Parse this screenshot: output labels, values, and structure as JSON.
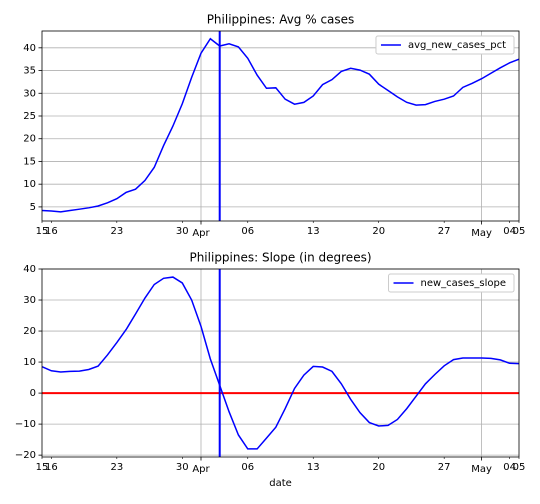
{
  "chart_data": [
    {
      "type": "line",
      "title": "Philippines: Avg % cases",
      "x": [
        0,
        1,
        2,
        3,
        4,
        5,
        6,
        7,
        8,
        9,
        10,
        11,
        12,
        13,
        14,
        15,
        16,
        17,
        18,
        19,
        20,
        21,
        22,
        23,
        24,
        25,
        26,
        27,
        28,
        29,
        30,
        31,
        32,
        33,
        34,
        35,
        36,
        37,
        38,
        39,
        40,
        41,
        42,
        43,
        44,
        45,
        46,
        47,
        48,
        49,
        50,
        51
      ],
      "series": [
        {
          "name": "avg_new_cases_pct",
          "color": "#0000ff",
          "values": [
            4.2,
            4.1,
            3.9,
            4.2,
            4.5,
            4.8,
            5.2,
            5.9,
            6.8,
            8.2,
            8.9,
            10.8,
            13.7,
            18.5,
            22.8,
            27.7,
            33.5,
            38.8,
            42.0,
            40.4,
            40.9,
            40.2,
            37.7,
            34.0,
            31.1,
            31.2,
            28.7,
            27.6,
            28.0,
            29.4,
            31.9,
            33.0,
            34.8,
            35.5,
            35.1,
            34.2,
            32.0,
            30.6,
            29.2,
            28.0,
            27.4,
            27.5,
            28.2,
            28.7,
            29.4,
            31.3,
            32.2,
            33.2,
            34.4,
            35.6,
            36.7,
            37.5
          ]
        }
      ],
      "xlim": [
        0,
        51
      ],
      "xticks": [
        {
          "value": 0,
          "label": "15"
        },
        {
          "value": 1,
          "label": "16"
        },
        {
          "value": 8,
          "label": "23"
        },
        {
          "value": 15,
          "label": "30"
        },
        {
          "value": 22,
          "label": "06"
        },
        {
          "value": 29,
          "label": "13"
        },
        {
          "value": 36,
          "label": "20"
        },
        {
          "value": 43,
          "label": "27"
        },
        {
          "value": 50,
          "label": "04"
        },
        {
          "value": 51,
          "label": "05"
        }
      ],
      "xmajorticks": [
        {
          "value": 17,
          "label": "Apr"
        },
        {
          "value": 47,
          "label": "May"
        }
      ],
      "ylim": [
        1.9,
        43.7
      ],
      "yticks": [
        5,
        10,
        15,
        20,
        25,
        30,
        35,
        40
      ],
      "grid": true,
      "legend": "upper right",
      "vline": {
        "x": 19,
        "color": "#0000ff"
      }
    },
    {
      "type": "line",
      "title": "Philippines: Slope (in degrees)",
      "xlabel": "date",
      "x": [
        0,
        1,
        2,
        3,
        4,
        5,
        6,
        7,
        8,
        9,
        10,
        11,
        12,
        13,
        14,
        15,
        16,
        17,
        18,
        19,
        20,
        21,
        22,
        23,
        24,
        25,
        26,
        27,
        28,
        29,
        30,
        31,
        32,
        33,
        34,
        35,
        36,
        37,
        38,
        39,
        40,
        41,
        42,
        43,
        44,
        45,
        46,
        47,
        48,
        49,
        50,
        51
      ],
      "series": [
        {
          "name": "new_cases_slope",
          "color": "#0000ff",
          "values": [
            8.5,
            7.2,
            6.8,
            7.0,
            7.1,
            7.6,
            8.7,
            12.3,
            16.3,
            20.5,
            25.5,
            30.6,
            35.0,
            37.0,
            37.4,
            35.5,
            30.0,
            21.5,
            11.0,
            2.5,
            -6.0,
            -13.5,
            -18.0,
            -18.0,
            -14.5,
            -11.0,
            -5.0,
            1.5,
            5.8,
            8.6,
            8.4,
            7.0,
            3.0,
            -2.0,
            -6.3,
            -9.5,
            -10.6,
            -10.4,
            -8.5,
            -5.0,
            -1.0,
            3.0,
            6.0,
            8.8,
            10.8,
            11.3,
            11.3,
            11.3,
            11.2,
            10.7,
            9.6,
            9.5
          ]
        }
      ],
      "xlim": [
        0,
        51
      ],
      "xticks": [
        {
          "value": 0,
          "label": "15"
        },
        {
          "value": 1,
          "label": "16"
        },
        {
          "value": 8,
          "label": "23"
        },
        {
          "value": 15,
          "label": "30"
        },
        {
          "value": 22,
          "label": "06"
        },
        {
          "value": 29,
          "label": "13"
        },
        {
          "value": 36,
          "label": "20"
        },
        {
          "value": 43,
          "label": "27"
        },
        {
          "value": 50,
          "label": "04"
        },
        {
          "value": 51,
          "label": "05"
        }
      ],
      "xmajorticks": [
        {
          "value": 17,
          "label": "Apr"
        },
        {
          "value": 47,
          "label": "May"
        }
      ],
      "ylim": [
        -20.6,
        40
      ],
      "yticks": [
        {
          "value": -20,
          "label": "−20"
        },
        {
          "value": -10,
          "label": "−10"
        },
        0,
        10,
        20,
        30,
        40
      ],
      "grid": true,
      "legend": "upper right",
      "vline": {
        "x": 19,
        "color": "#0000ff"
      },
      "hline": {
        "y": 0,
        "color": "#ff0000"
      }
    }
  ]
}
